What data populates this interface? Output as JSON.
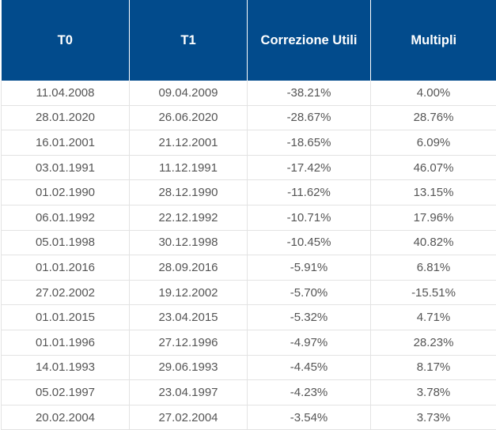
{
  "table": {
    "headers": [
      "T0",
      "T1",
      "Correzione Utili",
      "Multipli"
    ],
    "rows": [
      [
        "11.04.2008",
        "09.04.2009",
        "-38.21%",
        "4.00%"
      ],
      [
        "28.01.2020",
        "26.06.2020",
        "-28.67%",
        "28.76%"
      ],
      [
        "16.01.2001",
        "21.12.2001",
        "-18.65%",
        "6.09%"
      ],
      [
        "03.01.1991",
        "11.12.1991",
        "-17.42%",
        "46.07%"
      ],
      [
        "01.02.1990",
        "28.12.1990",
        "-11.62%",
        "13.15%"
      ],
      [
        "06.01.1992",
        "22.12.1992",
        "-10.71%",
        "17.96%"
      ],
      [
        "05.01.1998",
        "30.12.1998",
        "-10.45%",
        "40.82%"
      ],
      [
        "01.01.2016",
        "28.09.2016",
        "-5.91%",
        "6.81%"
      ],
      [
        "27.02.2002",
        "19.12.2002",
        "-5.70%",
        "-15.51%"
      ],
      [
        "01.01.2015",
        "23.04.2015",
        "-5.32%",
        "4.71%"
      ],
      [
        "01.01.1996",
        "27.12.1996",
        "-4.97%",
        "28.23%"
      ],
      [
        "14.01.1993",
        "29.06.1993",
        "-4.45%",
        "8.17%"
      ],
      [
        "05.02.1997",
        "23.04.1997",
        "-4.23%",
        "3.78%"
      ],
      [
        "20.02.2004",
        "27.02.2004",
        "-3.54%",
        "3.73%"
      ]
    ]
  },
  "colors": {
    "header_bg": "#024b8c",
    "header_text": "#ffffff",
    "cell_text": "#555555",
    "grid": "#e3e3e3"
  }
}
